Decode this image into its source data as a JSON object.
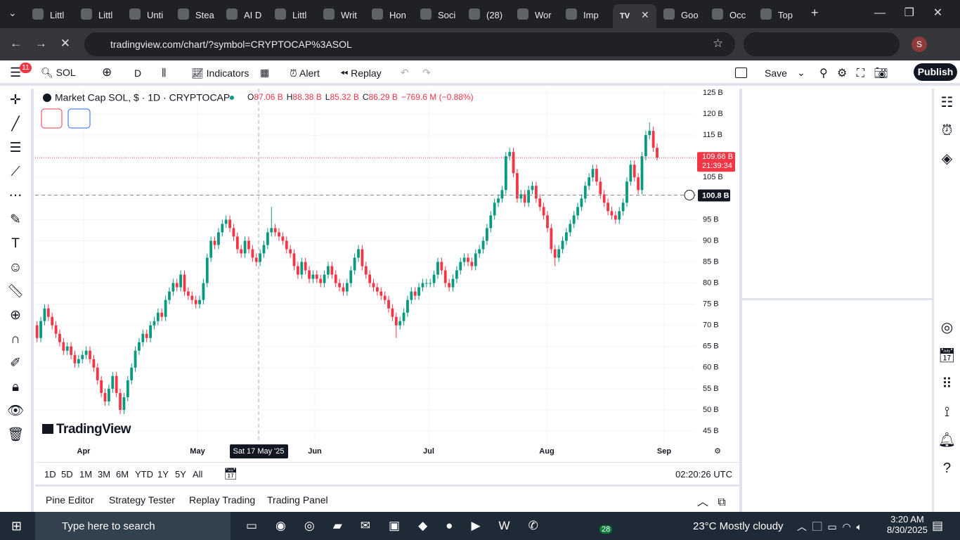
{
  "browser": {
    "tabs": [
      "Littl",
      "Littl",
      "Unti",
      "Stea",
      "AI D",
      "Littl",
      "Writ",
      "Hon",
      "Soci",
      "(28)",
      "Wor",
      "Imp",
      "Goo",
      "Occ",
      "Top"
    ],
    "url": "tradingview.com/chart/?symbol=CRYPTOCAP%3ASOL",
    "avatar": "S"
  },
  "toolbar": {
    "badge": "11",
    "symbol": "SOL",
    "interval": "D",
    "indicators": "Indicators",
    "alert": "Alert",
    "replay": "Replay",
    "save": "Save",
    "publish": "Publish"
  },
  "chart_data": {
    "type": "candlestick",
    "title": "Market Cap SOL, $ · 1D · CRYPTOCAP",
    "ohlc_legend": [
      [
        "O",
        "87.06 B"
      ],
      [
        "H",
        "88.38 B"
      ],
      [
        "L",
        "85.32 B"
      ],
      [
        "C",
        "86.29 B"
      ],
      [
        "",
        "−769.6 M (−0.88%)"
      ]
    ],
    "watermark": "TradingView",
    "up_color": "#089981",
    "down_color": "#f23645",
    "months": [
      "Apr",
      "May",
      "Jun",
      "Jul",
      "Aug",
      "Sep"
    ],
    "ylim": [
      42,
      128
    ],
    "yticks": [
      {
        "value": 45,
        "label": "45 B"
      },
      {
        "value": 50,
        "label": "50 B"
      },
      {
        "value": 55,
        "label": "55 B"
      },
      {
        "value": 60,
        "label": "60 B"
      },
      {
        "value": 65,
        "label": "65 B"
      },
      {
        "value": 70,
        "label": "70 B"
      },
      {
        "value": 75,
        "label": "75 B"
      },
      {
        "value": 80,
        "label": "80 B"
      },
      {
        "value": 85,
        "label": "85 B"
      },
      {
        "value": 90,
        "label": "90 B"
      },
      {
        "value": 95,
        "label": "95 B"
      },
      {
        "value": 100,
        "label": "100 B"
      },
      {
        "value": 105,
        "label": "105 B"
      },
      {
        "value": 110,
        "label": "110 B"
      },
      {
        "value": 115,
        "label": "115 B"
      },
      {
        "value": 120,
        "label": "120 B"
      },
      {
        "value": 125,
        "label": "125 B"
      }
    ],
    "last_price": {
      "label": "109.66 B",
      "countdown": "21:39:34"
    },
    "crosshair": {
      "value": 100.8,
      "label": "100.8 B",
      "date": "Sat 17 May '25"
    },
    "candles": [
      [
        70,
        71,
        66,
        67
      ],
      [
        67,
        72,
        66,
        71
      ],
      [
        71,
        75,
        70,
        74
      ],
      [
        74,
        75,
        71,
        72
      ],
      [
        72,
        73,
        69,
        70
      ],
      [
        70,
        71,
        67,
        68
      ],
      [
        68,
        69,
        65,
        66
      ],
      [
        66,
        67,
        63,
        64
      ],
      [
        64,
        66,
        63,
        65
      ],
      [
        65,
        66,
        62,
        63
      ],
      [
        63,
        64,
        60,
        61
      ],
      [
        61,
        63,
        60,
        62
      ],
      [
        62,
        64,
        61,
        63
      ],
      [
        63,
        65,
        62,
        64
      ],
      [
        64,
        65,
        61,
        62
      ],
      [
        62,
        63,
        59,
        60
      ],
      [
        60,
        61,
        56,
        57
      ],
      [
        57,
        58,
        53,
        54
      ],
      [
        54,
        55,
        51,
        52
      ],
      [
        52,
        56,
        51,
        55
      ],
      [
        55,
        59,
        54,
        58
      ],
      [
        58,
        59,
        53,
        54
      ],
      [
        54,
        55,
        49,
        50
      ],
      [
        50,
        54,
        49,
        53
      ],
      [
        53,
        58,
        52,
        57
      ],
      [
        57,
        61,
        56,
        60
      ],
      [
        60,
        65,
        59,
        64
      ],
      [
        64,
        67,
        63,
        66
      ],
      [
        66,
        69,
        65,
        68
      ],
      [
        68,
        69,
        66,
        67
      ],
      [
        67,
        71,
        66,
        70
      ],
      [
        70,
        72,
        69,
        71
      ],
      [
        71,
        74,
        70,
        73
      ],
      [
        73,
        74,
        71,
        72
      ],
      [
        72,
        77,
        71,
        76
      ],
      [
        76,
        79,
        75,
        78
      ],
      [
        78,
        81,
        77,
        80
      ],
      [
        80,
        81,
        78,
        79
      ],
      [
        79,
        83,
        78,
        82
      ],
      [
        82,
        83,
        77,
        78
      ],
      [
        78,
        79,
        76,
        77
      ],
      [
        77,
        78,
        75,
        76
      ],
      [
        76,
        77,
        74,
        75
      ],
      [
        75,
        77,
        74,
        76
      ],
      [
        76,
        81,
        75,
        80
      ],
      [
        80,
        87,
        79,
        86
      ],
      [
        86,
        91,
        85,
        90
      ],
      [
        90,
        91,
        88,
        89
      ],
      [
        89,
        93,
        88,
        92
      ],
      [
        92,
        95,
        91,
        94
      ],
      [
        94,
        96,
        93,
        95
      ],
      [
        95,
        96,
        92,
        93
      ],
      [
        93,
        94,
        90,
        91
      ],
      [
        91,
        92,
        87,
        88
      ],
      [
        88,
        89,
        86,
        87
      ],
      [
        87,
        91,
        86,
        90
      ],
      [
        90,
        91,
        87,
        88
      ],
      [
        88,
        89,
        85,
        86
      ],
      [
        86,
        87,
        84,
        85
      ],
      [
        85,
        88,
        84,
        87
      ],
      [
        87,
        90,
        86,
        89
      ],
      [
        89,
        93,
        88,
        92
      ],
      [
        92,
        98,
        91,
        93
      ],
      [
        93,
        94,
        91,
        92
      ],
      [
        92,
        93,
        90,
        91
      ],
      [
        91,
        92,
        89,
        90
      ],
      [
        90,
        91,
        87,
        88
      ],
      [
        88,
        89,
        86,
        87
      ],
      [
        87,
        88,
        83,
        84
      ],
      [
        84,
        85,
        81,
        82
      ],
      [
        82,
        86,
        81,
        85
      ],
      [
        85,
        86,
        82,
        83
      ],
      [
        83,
        84,
        80,
        81
      ],
      [
        81,
        83,
        80,
        82
      ],
      [
        82,
        83,
        80,
        81
      ],
      [
        81,
        82,
        79,
        80
      ],
      [
        80,
        83,
        79,
        82
      ],
      [
        82,
        85,
        81,
        84
      ],
      [
        84,
        85,
        81,
        82
      ],
      [
        82,
        83,
        79,
        80
      ],
      [
        80,
        81,
        78,
        79
      ],
      [
        79,
        80,
        77,
        78
      ],
      [
        78,
        81,
        77,
        80
      ],
      [
        80,
        84,
        79,
        83
      ],
      [
        83,
        87,
        82,
        86
      ],
      [
        86,
        89,
        85,
        88
      ],
      [
        88,
        89,
        83,
        84
      ],
      [
        84,
        85,
        81,
        82
      ],
      [
        82,
        83,
        79,
        80
      ],
      [
        80,
        81,
        78,
        79
      ],
      [
        79,
        80,
        77,
        78
      ],
      [
        78,
        79,
        76,
        77
      ],
      [
        77,
        78,
        75,
        76
      ],
      [
        76,
        77,
        73,
        74
      ],
      [
        74,
        75,
        71,
        72
      ],
      [
        72,
        73,
        67,
        70
      ],
      [
        70,
        72,
        69,
        71
      ],
      [
        71,
        74,
        70,
        73
      ],
      [
        73,
        77,
        72,
        76
      ],
      [
        76,
        79,
        75,
        78
      ],
      [
        78,
        79,
        76,
        77
      ],
      [
        77,
        80,
        76,
        79
      ],
      [
        79,
        81,
        78,
        80
      ],
      [
        80,
        81,
        79,
        80
      ],
      [
        80,
        81,
        79,
        80
      ],
      [
        80,
        83,
        79,
        82
      ],
      [
        82,
        86,
        81,
        85
      ],
      [
        85,
        86,
        82,
        83
      ],
      [
        83,
        84,
        79,
        80
      ],
      [
        80,
        81,
        78,
        79
      ],
      [
        79,
        82,
        78,
        81
      ],
      [
        81,
        84,
        80,
        83
      ],
      [
        83,
        86,
        82,
        85
      ],
      [
        85,
        87,
        84,
        86
      ],
      [
        86,
        87,
        84,
        85
      ],
      [
        85,
        86,
        83,
        84
      ],
      [
        84,
        88,
        83,
        87
      ],
      [
        87,
        89,
        86,
        88
      ],
      [
        88,
        91,
        87,
        90
      ],
      [
        90,
        94,
        89,
        93
      ],
      [
        93,
        97,
        92,
        96
      ],
      [
        96,
        100,
        95,
        99
      ],
      [
        99,
        101,
        98,
        100
      ],
      [
        100,
        103,
        99,
        102
      ],
      [
        102,
        111,
        101,
        110
      ],
      [
        110,
        112,
        109,
        111
      ],
      [
        111,
        112,
        105,
        106
      ],
      [
        106,
        107,
        99,
        100
      ],
      [
        100,
        102,
        99,
        101
      ],
      [
        101,
        102,
        98,
        99
      ],
      [
        99,
        103,
        98,
        102
      ],
      [
        102,
        104,
        101,
        103
      ],
      [
        103,
        104,
        99,
        100
      ],
      [
        100,
        101,
        97,
        98
      ],
      [
        98,
        99,
        95,
        96
      ],
      [
        96,
        97,
        92,
        93
      ],
      [
        93,
        94,
        87,
        88
      ],
      [
        88,
        89,
        84,
        86
      ],
      [
        86,
        89,
        85,
        88
      ],
      [
        88,
        91,
        87,
        90
      ],
      [
        90,
        93,
        89,
        92
      ],
      [
        92,
        95,
        91,
        94
      ],
      [
        94,
        97,
        93,
        96
      ],
      [
        96,
        99,
        95,
        98
      ],
      [
        98,
        101,
        97,
        100
      ],
      [
        100,
        104,
        99,
        103
      ],
      [
        103,
        106,
        102,
        105
      ],
      [
        105,
        108,
        104,
        107
      ],
      [
        107,
        108,
        103,
        104
      ],
      [
        104,
        105,
        100,
        101
      ],
      [
        101,
        102,
        98,
        99
      ],
      [
        99,
        100,
        96,
        97
      ],
      [
        97,
        98,
        95,
        96
      ],
      [
        96,
        97,
        94,
        95
      ],
      [
        95,
        98,
        94,
        97
      ],
      [
        97,
        100,
        96,
        99
      ],
      [
        99,
        105,
        98,
        104
      ],
      [
        104,
        109,
        103,
        108
      ],
      [
        108,
        109,
        104,
        105
      ],
      [
        105,
        106,
        101,
        102
      ],
      [
        102,
        111,
        101,
        110
      ],
      [
        110,
        116,
        109,
        115
      ],
      [
        115,
        118,
        114,
        116
      ],
      [
        116,
        117,
        111,
        112
      ],
      [
        112,
        113,
        109,
        109.66
      ]
    ]
  },
  "bottom_bar": {
    "ranges": [
      "1D",
      "5D",
      "1M",
      "3M",
      "6M",
      "YTD",
      "1Y",
      "5Y",
      "All"
    ],
    "clock": "02:20:26 UTC",
    "panels": [
      "Pine Editor",
      "Strategy Tester",
      "Replay Trading",
      "Trading Panel"
    ]
  },
  "taskbar": {
    "search": "Type here to search",
    "badge": "28",
    "weather": "23°C  Mostly cloudy",
    "time": "3:20 AM",
    "date": "8/30/2025"
  }
}
